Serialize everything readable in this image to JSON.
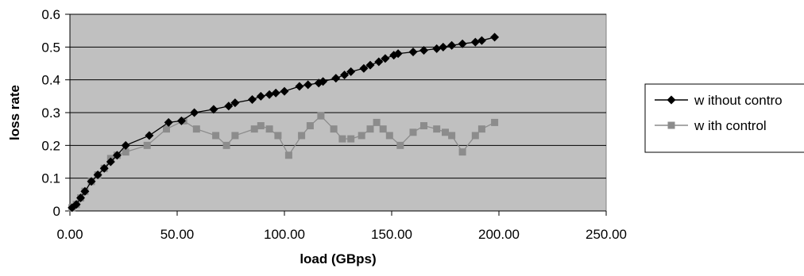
{
  "chart_data": {
    "type": "line",
    "title": "",
    "xlabel": "load  (GBps)",
    "ylabel": "loss rate",
    "xlim": [
      0,
      250
    ],
    "ylim": [
      0,
      0.6
    ],
    "x_ticks": [
      "0.00",
      "50.00",
      "100.00",
      "150.00",
      "200.00",
      "250.00"
    ],
    "y_ticks": [
      "0",
      "0.1",
      "0.2",
      "0.3",
      "0.4",
      "0.5",
      "0.6"
    ],
    "grid": "horizontal",
    "legend_position": "right",
    "plot_background": "#c0c0c0",
    "series": [
      {
        "name": "w ithout contro",
        "color": "#000000",
        "marker": "diamond",
        "points": [
          [
            1,
            0.01
          ],
          [
            3,
            0.02
          ],
          [
            5,
            0.04
          ],
          [
            7,
            0.06
          ],
          [
            10,
            0.09
          ],
          [
            13,
            0.11
          ],
          [
            16,
            0.13
          ],
          [
            19,
            0.15
          ],
          [
            22,
            0.17
          ],
          [
            26,
            0.2
          ],
          [
            37,
            0.23
          ],
          [
            46,
            0.27
          ],
          [
            52,
            0.275
          ],
          [
            58,
            0.3
          ],
          [
            67,
            0.31
          ],
          [
            74,
            0.32
          ],
          [
            77,
            0.33
          ],
          [
            85,
            0.34
          ],
          [
            89,
            0.35
          ],
          [
            93,
            0.355
          ],
          [
            96,
            0.36
          ],
          [
            100,
            0.365
          ],
          [
            107,
            0.38
          ],
          [
            111,
            0.385
          ],
          [
            116,
            0.39
          ],
          [
            118,
            0.395
          ],
          [
            124,
            0.405
          ],
          [
            128,
            0.415
          ],
          [
            131,
            0.425
          ],
          [
            137,
            0.435
          ],
          [
            140,
            0.445
          ],
          [
            144,
            0.455
          ],
          [
            147,
            0.465
          ],
          [
            151,
            0.475
          ],
          [
            153,
            0.48
          ],
          [
            160,
            0.485
          ],
          [
            165,
            0.49
          ],
          [
            171,
            0.495
          ],
          [
            174,
            0.5
          ],
          [
            178,
            0.505
          ],
          [
            183,
            0.51
          ],
          [
            189,
            0.515
          ],
          [
            192,
            0.52
          ],
          [
            198,
            0.53
          ]
        ]
      },
      {
        "name": "w ith control",
        "color": "#8c8c8c",
        "marker": "square",
        "points": [
          [
            1,
            0.01
          ],
          [
            3,
            0.02
          ],
          [
            5,
            0.04
          ],
          [
            7,
            0.06
          ],
          [
            10,
            0.09
          ],
          [
            13,
            0.11
          ],
          [
            16,
            0.13
          ],
          [
            19,
            0.16
          ],
          [
            22,
            0.17
          ],
          [
            26,
            0.18
          ],
          [
            36,
            0.2
          ],
          [
            45,
            0.25
          ],
          [
            53,
            0.275
          ],
          [
            59,
            0.25
          ],
          [
            68,
            0.23
          ],
          [
            73,
            0.2
          ],
          [
            77,
            0.23
          ],
          [
            86,
            0.25
          ],
          [
            89,
            0.26
          ],
          [
            93,
            0.25
          ],
          [
            97,
            0.23
          ],
          [
            102,
            0.17
          ],
          [
            108,
            0.23
          ],
          [
            112,
            0.26
          ],
          [
            117,
            0.29
          ],
          [
            123,
            0.25
          ],
          [
            127,
            0.22
          ],
          [
            131,
            0.22
          ],
          [
            136,
            0.23
          ],
          [
            140,
            0.25
          ],
          [
            143,
            0.27
          ],
          [
            146,
            0.25
          ],
          [
            149,
            0.23
          ],
          [
            154,
            0.2
          ],
          [
            160,
            0.24
          ],
          [
            165,
            0.26
          ],
          [
            171,
            0.25
          ],
          [
            175,
            0.24
          ],
          [
            178,
            0.23
          ],
          [
            183,
            0.18
          ],
          [
            189,
            0.23
          ],
          [
            192,
            0.25
          ],
          [
            198,
            0.27
          ]
        ]
      }
    ]
  }
}
